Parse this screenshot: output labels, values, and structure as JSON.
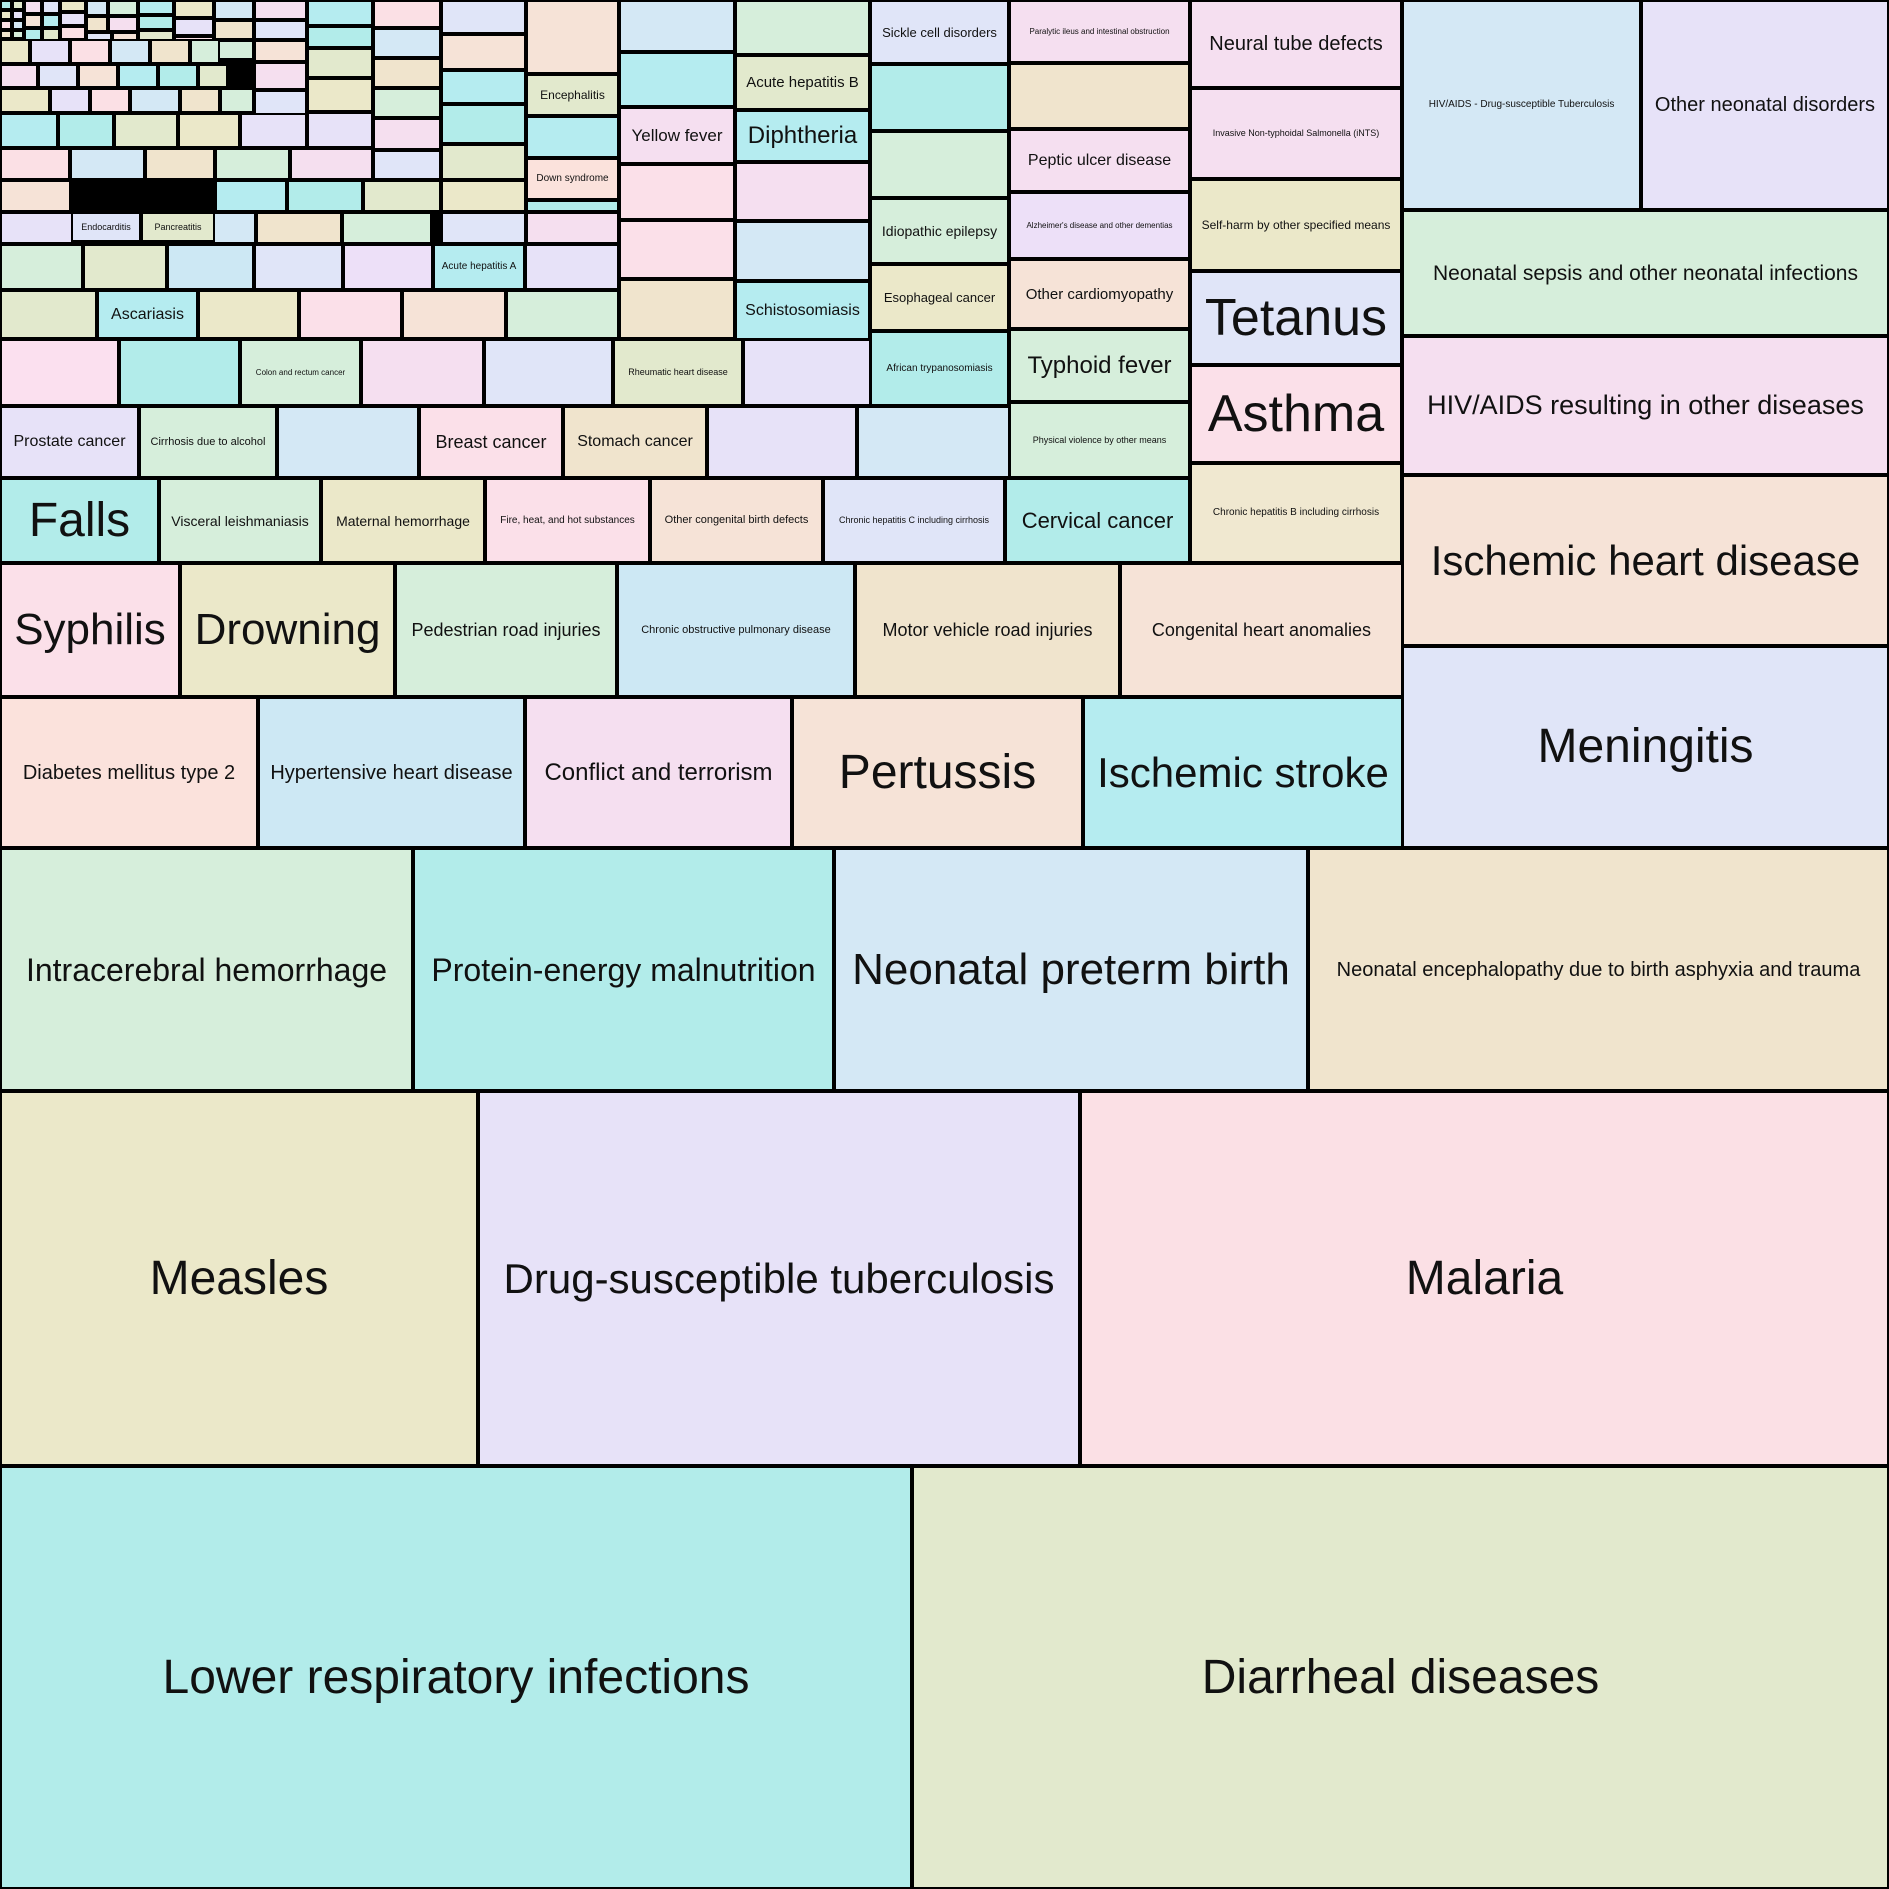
{
  "chart_data": {
    "type": "treemap",
    "title": "",
    "palette": [
      "#b2ecea",
      "#e2e9cd",
      "#ebe8c9",
      "#e7e2f8",
      "#fbe0e5",
      "#d4e8f5",
      "#f0e4cd",
      "#d6eedb",
      "#f5dfef",
      "#e0e5f8",
      "#f6e3d7",
      "#b5ecf0"
    ],
    "nodes": [
      {
        "name": "Lower respiratory infections",
        "value": 100,
        "color": "#b2ecea",
        "font": 48
      },
      {
        "name": "Diarrheal diseases",
        "value": 96,
        "color": "#e2e9cd",
        "font": 48
      },
      {
        "name": "Measles",
        "value": 45,
        "color": "#ebe8c9",
        "font": 48
      },
      {
        "name": "Drug-susceptible tuberculosis",
        "value": 57,
        "color": "#e7e2f8",
        "font": 42
      },
      {
        "name": "Malaria",
        "value": 75,
        "color": "#fbe0e5",
        "font": 48
      },
      {
        "name": "Intracerebral hemorrhage",
        "value": 25,
        "color": "#d6eedb",
        "font": 32
      },
      {
        "name": "Protein-energy malnutrition",
        "value": 25,
        "color": "#b2ecea",
        "font": 32
      },
      {
        "name": "Neonatal preterm birth",
        "value": 28,
        "color": "#d4e8f5",
        "font": 44
      },
      {
        "name": "Neonatal encephalopathy due to birth asphyxia and trauma",
        "value": 35,
        "color": "#f0e4cd",
        "font": 20
      },
      {
        "name": "Diabetes mellitus type 2",
        "value": 10,
        "color": "#fbe2dc",
        "font": 20
      },
      {
        "name": "Hypertensive heart disease",
        "value": 10,
        "color": "#cde8f4",
        "font": 20
      },
      {
        "name": "Conflict and terrorism",
        "value": 10,
        "color": "#f5dff0",
        "font": 24
      },
      {
        "name": "Pertussis",
        "value": 11,
        "color": "#f6e3d7",
        "font": 48
      },
      {
        "name": "Ischemic stroke",
        "value": 12,
        "color": "#b5ecf0",
        "font": 42
      },
      {
        "name": "Syphilis",
        "value": 6,
        "color": "#fbe0e9",
        "font": 44
      },
      {
        "name": "Drowning",
        "value": 8.5,
        "color": "#ebe8c9",
        "font": 44
      },
      {
        "name": "Pedestrian road injuries",
        "value": 8.5,
        "color": "#d6eedb",
        "font": 18
      },
      {
        "name": "Chronic obstructive pulmonary disease",
        "value": 9,
        "color": "#cde8f4",
        "font": 11
      },
      {
        "name": "Motor vehicle road injuries",
        "value": 10,
        "color": "#f0e4cd",
        "font": 18
      },
      {
        "name": "Congenital heart anomalies",
        "value": 11,
        "color": "#f6e3d7",
        "font": 18
      },
      {
        "name": "Falls",
        "value": 3.5,
        "color": "#b2ecea",
        "font": 48
      },
      {
        "name": "Visceral leishmaniasis",
        "value": 3.5,
        "color": "#d6eedb",
        "font": 14
      },
      {
        "name": "Maternal hemorrhage",
        "value": 3.5,
        "color": "#ebe8c9",
        "font": 14
      },
      {
        "name": "Fire, heat, and hot substances",
        "value": 3.5,
        "color": "#fbe0e9",
        "font": 10
      },
      {
        "name": "Other congenital birth defects",
        "value": 3.5,
        "color": "#f6e3d7",
        "font": 11
      },
      {
        "name": "Chronic hepatitis C including cirrhosis",
        "value": 3.5,
        "color": "#e0e5f8",
        "font": 9
      },
      {
        "name": "Cervical cancer",
        "value": 3.5,
        "color": "#b2ecea",
        "font": 22
      },
      {
        "name": "Prostate cancer",
        "value": 2.5,
        "color": "#e7e2f8",
        "font": 16
      },
      {
        "name": "Cirrhosis due to alcohol",
        "value": 2.5,
        "color": "#d6eedb",
        "font": 11
      },
      {
        "name": "",
        "value": 2.5,
        "color": "#d4e8f5",
        "font": 10
      },
      {
        "name": "Breast cancer",
        "value": 2.5,
        "color": "#fbe0e9",
        "font": 18
      },
      {
        "name": "Stomach cancer",
        "value": 2.5,
        "color": "#f0e4cd",
        "font": 16
      },
      {
        "name": "",
        "value": 2.5,
        "color": "#e7e2f8",
        "font": 10
      },
      {
        "name": "",
        "value": 2.5,
        "color": "#d4e8f5",
        "font": 10
      },
      {
        "name": "",
        "value": 2.2,
        "color": "#fbe0ef",
        "font": 10
      },
      {
        "name": "",
        "value": 2.2,
        "color": "#b2ecea",
        "font": 10
      },
      {
        "name": "Colon and rectum cancer",
        "value": 2.2,
        "color": "#d6eedb",
        "font": 8
      },
      {
        "name": "",
        "value": 2.2,
        "color": "#f5dff0",
        "font": 10
      },
      {
        "name": "",
        "value": 2.2,
        "color": "#e0e5f8",
        "font": 10
      },
      {
        "name": "Rheumatic heart disease",
        "value": 2.2,
        "color": "#e2e9cd",
        "font": 9
      },
      {
        "name": "",
        "value": 2.2,
        "color": "#e7e2f8",
        "font": 10
      },
      {
        "name": "",
        "value": 1.8,
        "color": "#e2e9cd",
        "font": 10
      },
      {
        "name": "Ascariasis",
        "value": 1.8,
        "color": "#b5ecf0",
        "font": 16
      },
      {
        "name": "",
        "value": 1.8,
        "color": "#ebe8c9",
        "font": 10
      },
      {
        "name": "",
        "value": 1.8,
        "color": "#fbe0e9",
        "font": 10
      },
      {
        "name": "",
        "value": 1.8,
        "color": "#f6e3d7",
        "font": 10
      },
      {
        "name": "",
        "value": 1.8,
        "color": "#d6eedb",
        "font": 10
      },
      {
        "name": "",
        "value": 1.5,
        "color": "#d6eedb",
        "font": 10
      },
      {
        "name": "",
        "value": 1.5,
        "color": "#e2e9cd",
        "font": 10
      },
      {
        "name": "",
        "value": 1.5,
        "color": "#cde8f4",
        "font": 10
      },
      {
        "name": "",
        "value": 1.5,
        "color": "#e0e5f8",
        "font": 10
      },
      {
        "name": "",
        "value": 1.5,
        "color": "#ede0f8",
        "font": 10
      },
      {
        "name": "Acute hepatitis A",
        "value": 1.5,
        "color": "#b5ecf0",
        "font": 10
      },
      {
        "name": "",
        "value": 1.5,
        "color": "#e7e2f8",
        "font": 10
      },
      {
        "name": "",
        "value": 2.5,
        "color": "#d4e8f5",
        "font": 10
      },
      {
        "name": "",
        "value": 2.5,
        "color": "#b5ecf0",
        "font": 10
      },
      {
        "name": "Yellow fever",
        "value": 2.5,
        "color": "#f5dff0",
        "font": 17
      },
      {
        "name": "",
        "value": 2.5,
        "color": "#fbe0e9",
        "font": 10
      },
      {
        "name": "",
        "value": 2.5,
        "color": "#fbe0e9",
        "font": 10
      },
      {
        "name": "",
        "value": 2.5,
        "color": "#f0e4cd",
        "font": 10
      },
      {
        "name": "",
        "value": 2.5,
        "color": "#d6eedb",
        "font": 10
      },
      {
        "name": "Acute hepatitis B",
        "value": 2.5,
        "color": "#e2e9cd",
        "font": 15
      },
      {
        "name": "Diphtheria",
        "value": 2.5,
        "color": "#b5ecf0",
        "font": 24
      },
      {
        "name": "",
        "value": 2.5,
        "color": "#f5dff0",
        "font": 10
      },
      {
        "name": "",
        "value": 2.5,
        "color": "#d4e8f5",
        "font": 10
      },
      {
        "name": "Schistosomiasis",
        "value": 2.5,
        "color": "#b5ecf0",
        "font": 16
      },
      {
        "name": "Sickle cell disorders",
        "value": 2.5,
        "color": "#e0e5f8",
        "font": 13
      },
      {
        "name": "",
        "value": 2.5,
        "color": "#b2ecea",
        "font": 10
      },
      {
        "name": "",
        "value": 2.5,
        "color": "#d6eedb",
        "font": 10
      },
      {
        "name": "Idiopathic epilepsy",
        "value": 2.5,
        "color": "#d6eedb",
        "font": 14
      },
      {
        "name": "Esophageal cancer",
        "value": 2.5,
        "color": "#ebe8c9",
        "font": 13
      },
      {
        "name": "African trypanosomiasis",
        "value": 2.5,
        "color": "#b2ecea",
        "font": 10
      },
      {
        "name": "Paralytic ileus and intestinal obstruction",
        "value": 2.5,
        "color": "#f5dff0",
        "font": 8
      },
      {
        "name": "",
        "value": 2.5,
        "color": "#f0e4cd",
        "font": 10
      },
      {
        "name": "Peptic ulcer disease",
        "value": 2.5,
        "color": "#f5dff0",
        "font": 16
      },
      {
        "name": "Alzheimer's disease and other dementias",
        "value": 2.5,
        "color": "#ede0f8",
        "font": 8
      },
      {
        "name": "Other cardiomyopathy",
        "value": 2.5,
        "color": "#f6e3d7",
        "font": 15
      },
      {
        "name": "Typhoid fever",
        "value": 2.5,
        "color": "#d6eedb",
        "font": 24
      },
      {
        "name": "Physical violence by other means",
        "value": 2.5,
        "color": "#d6eedb",
        "font": 9
      },
      {
        "name": "Neural tube defects",
        "value": 3,
        "color": "#f5dff0",
        "font": 20
      },
      {
        "name": "Invasive Non-typhoidal Salmonella (iNTS)",
        "value": 3,
        "color": "#f5dff0",
        "font": 9
      },
      {
        "name": "Self-harm by other specified means",
        "value": 3,
        "color": "#ebe8c9",
        "font": 12
      },
      {
        "name": "Tetanus",
        "value": 4,
        "color": "#e0e5f8",
        "font": 52
      },
      {
        "name": "Asthma",
        "value": 4,
        "color": "#fbe0e9",
        "font": 52
      },
      {
        "name": "Chronic hepatitis B including cirrhosis",
        "value": 4,
        "color": "#f0e8d0",
        "font": 10
      },
      {
        "name": "HIV/AIDS - Drug-susceptible Tuberculosis",
        "value": 6,
        "color": "#d4e8f5",
        "font": 10
      },
      {
        "name": "Other neonatal disorders",
        "value": 6,
        "color": "#e7e2f8",
        "font": 20
      },
      {
        "name": "Neonatal sepsis and other neonatal infections",
        "value": 7,
        "color": "#d6eedb",
        "font": 21
      },
      {
        "name": "HIV/AIDS resulting in other diseases",
        "value": 8,
        "color": "#f5dff0",
        "font": 27
      },
      {
        "name": "Ischemic heart disease",
        "value": 11,
        "color": "#f6e3d7",
        "font": 42
      },
      {
        "name": "Meningitis",
        "value": 12,
        "color": "#e0e5f8",
        "font": 48
      },
      {
        "name": "Encephalitis",
        "value": 1.2,
        "color": "#e2e9cd",
        "font": 12
      },
      {
        "name": "Down syndrome",
        "value": 1.2,
        "color": "#fbe2dc",
        "font": 10
      },
      {
        "name": "Endocarditis",
        "value": 0.8,
        "color": "#e0e5f8",
        "font": 9
      },
      {
        "name": "Pancreatitis",
        "value": 0.8,
        "color": "#e2e9cd",
        "font": 9
      }
    ]
  }
}
